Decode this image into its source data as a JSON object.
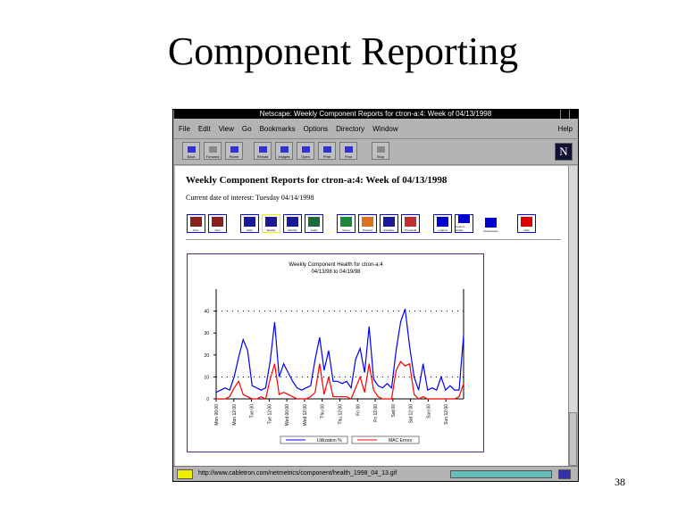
{
  "slide": {
    "title": "Component Reporting",
    "page_number": "38"
  },
  "window": {
    "title": "Netscape: Weekly Component Reports for ctron-a:4: Week of 04/13/1998"
  },
  "menu": [
    "File",
    "Edit",
    "View",
    "Go",
    "Bookmarks",
    "Options",
    "Directory",
    "Window"
  ],
  "menu_help": "Help",
  "toolbar": [
    "Back",
    "Forward",
    "Home",
    "Reload",
    "Images",
    "Open",
    "Print",
    "Find",
    "Stop"
  ],
  "page": {
    "heading": "Weekly Component Reports for ctron-a:4: Week of 04/13/1998",
    "current_date": "Current date of interest: Tuesday 04/14/1998",
    "nav_buttons": [
      {
        "label": "Prev",
        "color": "#8b2020"
      },
      {
        "label": "Next",
        "color": "#8b2020"
      },
      {
        "label": "Daily",
        "color": "#1a1a99"
      },
      {
        "label": "Weekly",
        "color": "#1a1a99"
      },
      {
        "label": "Monthly",
        "color": "#1a1a99"
      },
      {
        "label": "Yearly",
        "color": "#1a6a3a"
      },
      {
        "label": "Group",
        "color": "#1a8a3a"
      },
      {
        "label": "Protocol",
        "color": "#e07020"
      },
      {
        "label": "Interface",
        "color": "#1a1a99"
      },
      {
        "label": "Threshold",
        "color": "#c03030"
      },
      {
        "label": "Legend",
        "color": "#0000cc"
      },
      {
        "label": "Custom Graph",
        "color": "#0000cc"
      },
      {
        "label": "Preferences",
        "color": "#0000cc"
      },
      {
        "label": "Help",
        "color": "#dd0000"
      }
    ]
  },
  "status": {
    "url": "http://www.cabletron.com/netmetrics/component/health_1998_04_13.gif"
  },
  "chart_data": {
    "type": "line",
    "title": "Weekly Component Health for ctron-a:4",
    "subtitle": "04/13/98 to 04/19/98",
    "ylim": [
      0,
      50
    ],
    "yticks": [
      0,
      10,
      20,
      30,
      40
    ],
    "grid": "dotted at 10 and 40",
    "xtick_labels": [
      "Mon 00:00",
      "Mon 12:00",
      "Tue 00",
      "Tue 12:00",
      "Wed 00:00",
      "Wed 12:00",
      "Thu 00",
      "Thu 12:00",
      "Fri 00",
      "Fri 12:00",
      "Sat 00",
      "Sat 12:00",
      "Sun 00",
      "Sun 12:00"
    ],
    "x_hours_step": 3,
    "legend": "bottom",
    "series": [
      {
        "name": "Utilization %",
        "color": "#0000ff",
        "values": [
          3,
          4,
          5,
          4,
          10,
          19,
          27,
          22,
          6,
          5,
          4,
          5,
          17,
          35,
          10,
          16,
          12,
          8,
          5,
          4,
          5,
          6,
          18,
          28,
          13,
          22,
          8,
          8,
          7,
          8,
          5,
          18,
          23,
          12,
          33,
          9,
          6,
          5,
          7,
          5,
          22,
          35,
          41,
          24,
          10,
          4,
          16,
          4,
          5,
          4,
          10,
          4,
          6,
          4,
          4,
          29
        ]
      },
      {
        "name": "MAC Errors",
        "color": "#ff0000",
        "values": [
          0,
          0,
          0,
          1,
          5,
          8,
          2,
          1,
          0,
          0,
          1,
          0,
          9,
          16,
          2,
          3,
          2,
          1,
          0,
          0,
          0,
          1,
          3,
          16,
          2,
          10,
          1,
          1,
          1,
          1,
          0,
          5,
          10,
          3,
          16,
          4,
          1,
          0,
          0,
          0,
          13,
          17,
          15,
          16,
          2,
          0,
          1,
          0,
          0,
          0,
          0,
          0,
          0,
          0,
          1,
          7
        ]
      }
    ]
  }
}
